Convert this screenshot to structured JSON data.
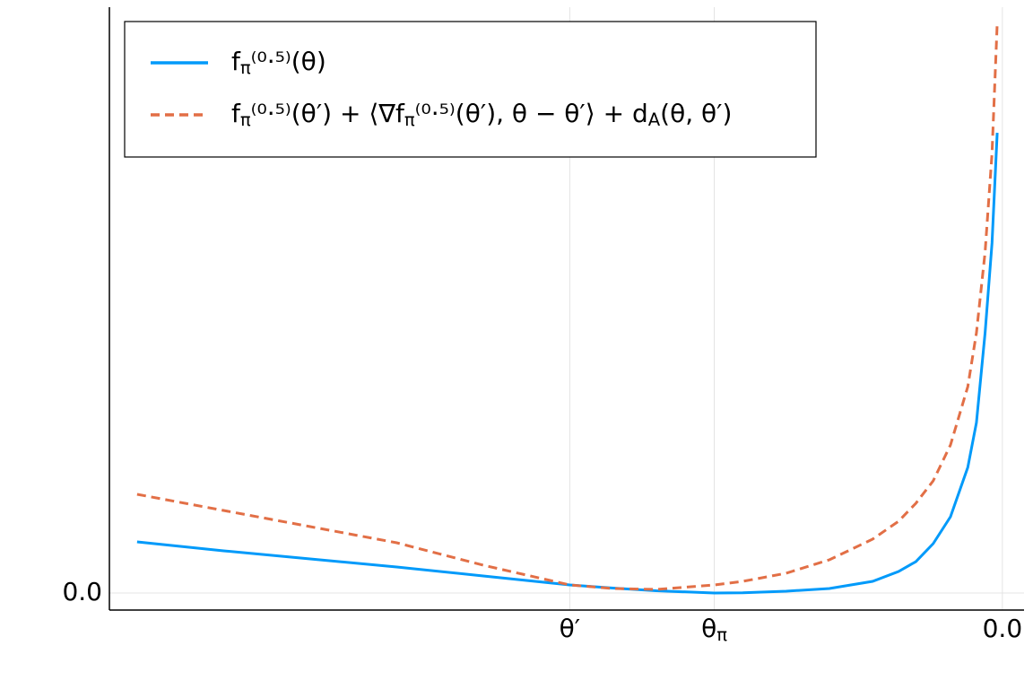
{
  "chart_data": {
    "type": "line",
    "x": [
      -1,
      -0.9,
      -0.8,
      -0.7,
      -0.6,
      -0.5,
      -0.45,
      -0.4,
      -0.333,
      -0.3,
      -0.25,
      -0.2,
      -0.15,
      -0.12,
      -0.1,
      -0.08,
      -0.06,
      -0.04,
      -0.03,
      -0.02,
      -0.012,
      -0.006
    ],
    "series": [
      {
        "name": "fπ⁽⁰·⁵⁾(θ)",
        "color": "#009AFA",
        "dash": false,
        "values": [
          0.57,
          0.47,
          0.38,
          0.29,
          0.19,
          0.09,
          0.055,
          0.025,
          0.0,
          0.003,
          0.02,
          0.05,
          0.13,
          0.24,
          0.35,
          0.55,
          0.85,
          1.4,
          1.9,
          2.9,
          3.9,
          5.13
        ]
      },
      {
        "name": "fπ⁽⁰·⁵⁾(θ′) + ⟨∇fπ⁽⁰·⁵⁾(θ′), θ − θ′⟩ + dA(θ, θ′)",
        "color": "#E26F46",
        "dash": true,
        "values": [
          1.1,
          0.92,
          0.74,
          0.56,
          0.31,
          0.09,
          0.05,
          0.04,
          0.09,
          0.13,
          0.22,
          0.37,
          0.6,
          0.8,
          1.0,
          1.25,
          1.65,
          2.3,
          2.9,
          3.8,
          4.9,
          6.35
        ]
      }
    ],
    "xlim": [
      -1.032,
      0.025
    ],
    "ylim": [
      -0.19,
      6.53
    ],
    "xticks": [
      {
        "value": -0.5,
        "label": "θ′"
      },
      {
        "value": -0.333,
        "label": "θπ"
      },
      {
        "value": 0,
        "label": "0.0"
      }
    ],
    "yticks": [
      {
        "value": 0,
        "label": "0.0"
      }
    ],
    "grid": true,
    "legend": "top-left"
  }
}
